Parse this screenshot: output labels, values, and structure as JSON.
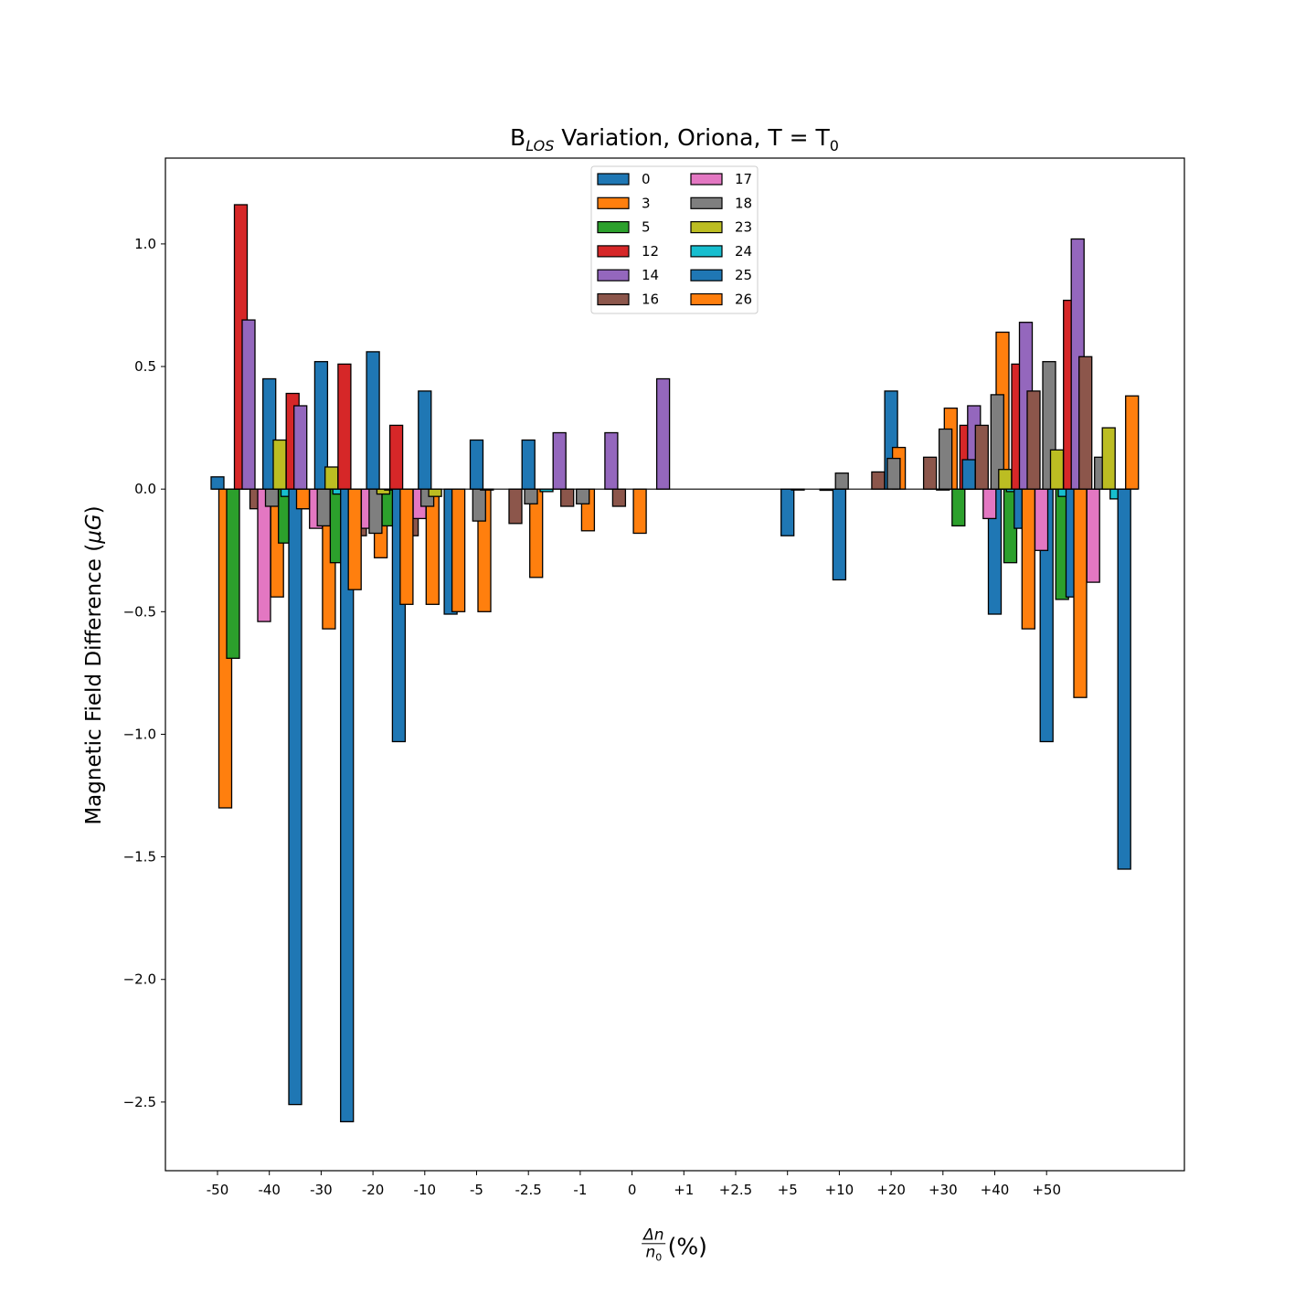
{
  "chart_data": {
    "type": "bar",
    "title": {
      "prefix": "B",
      "sub": "LOS",
      "middle": " Variation, Oriona, T = T",
      "sub2": "0"
    },
    "ylabel": {
      "text": "Magnetic Field Difference (",
      "unit": "μG",
      "close": ")"
    },
    "xlabel": {
      "num": "Δn",
      "den_base": "n",
      "den_sub": "0",
      "tail": "(%)"
    },
    "xticks": [
      "-50",
      "-40",
      "-30",
      "-20",
      "-10",
      "-5",
      "-2.5",
      "-1",
      "0",
      "+1",
      "+2.5",
      "+5",
      "+10",
      "+20",
      "+30",
      "+40",
      "+50"
    ],
    "yticks": [
      {
        "value": 1.0,
        "label": "1.0"
      },
      {
        "value": 0.5,
        "label": "0.5"
      },
      {
        "value": 0.0,
        "label": "0.0"
      },
      {
        "value": -0.5,
        "label": "−0.5"
      },
      {
        "value": -1.0,
        "label": "−1.0"
      },
      {
        "value": -1.5,
        "label": "−1.5"
      },
      {
        "value": -2.0,
        "label": "−2.0"
      },
      {
        "value": -2.5,
        "label": "−2.5"
      }
    ],
    "ylim": [
      -2.78,
      1.35
    ],
    "grid": false,
    "legend_position": "top-center",
    "legend_columns": 2,
    "series": [
      {
        "name": "0",
        "color": "#1f77b4",
        "values": [
          0.05,
          0.45,
          0.52,
          0.56,
          0.4,
          0.2,
          0.2,
          null,
          null,
          null,
          null,
          -0.19,
          -0.37,
          0.4,
          0.0,
          -0.51,
          -1.03
        ]
      },
      {
        "name": "3",
        "color": "#ff7f0e",
        "values": [
          -1.3,
          -0.44,
          -0.57,
          -0.28,
          -0.47,
          -0.5,
          -0.36,
          -0.17,
          -0.18,
          null,
          null,
          null,
          null,
          0.17,
          0.33,
          0.64,
          0.13
        ]
      },
      {
        "name": "5",
        "color": "#2ca02c",
        "values": [
          -0.69,
          -0.22,
          -0.3,
          -0.15,
          null,
          null,
          null,
          null,
          null,
          null,
          null,
          null,
          null,
          null,
          -0.15,
          -0.3,
          -0.45
        ]
      },
      {
        "name": "12",
        "color": "#d62728",
        "values": [
          1.16,
          0.39,
          0.51,
          0.26,
          null,
          null,
          null,
          null,
          null,
          null,
          null,
          null,
          null,
          null,
          0.26,
          0.51,
          0.77
        ]
      },
      {
        "name": "14",
        "color": "#9467bd",
        "values": [
          0.69,
          0.34,
          null,
          null,
          null,
          null,
          0.23,
          0.23,
          0.45,
          null,
          null,
          null,
          null,
          null,
          0.34,
          0.68,
          1.02
        ]
      },
      {
        "name": "16",
        "color": "#8c564b",
        "values": [
          -0.08,
          -0.08,
          -0.19,
          -0.19,
          null,
          -0.14,
          -0.07,
          -0.07,
          null,
          null,
          null,
          -0.005,
          0.07,
          0.13,
          0.26,
          0.4,
          0.54
        ]
      },
      {
        "name": "17",
        "color": "#e377c2",
        "values": [
          -0.54,
          -0.16,
          -0.16,
          -0.12,
          null,
          null,
          null,
          null,
          null,
          null,
          null,
          null,
          null,
          null,
          -0.12,
          -0.25,
          -0.38
        ]
      },
      {
        "name": "18",
        "color": "#7f7f7f",
        "values": [
          -0.07,
          -0.15,
          -0.18,
          -0.07,
          -0.13,
          -0.06,
          -0.06,
          null,
          null,
          null,
          null,
          0.065,
          0.125,
          0.245,
          0.385,
          0.52,
          0.13
        ]
      },
      {
        "name": "23",
        "color": "#bcbd22",
        "values": [
          0.2,
          0.09,
          -0.02,
          -0.03,
          0.0,
          null,
          null,
          null,
          null,
          null,
          0.0,
          null,
          null,
          null,
          0.08,
          0.16,
          0.25
        ]
      },
      {
        "name": "24",
        "color": "#17becf",
        "values": [
          -0.03,
          -0.02,
          0.0,
          null,
          null,
          -0.01,
          null,
          null,
          null,
          null,
          null,
          null,
          null,
          null,
          -0.01,
          -0.03,
          -0.04
        ]
      },
      {
        "name": "25",
        "color": "#1f77b4",
        "values": [
          -2.51,
          -2.58,
          -1.03,
          -0.51,
          null,
          null,
          null,
          null,
          null,
          null,
          null,
          null,
          null,
          0.12,
          -0.16,
          -0.44,
          -1.55
        ]
      },
      {
        "name": "26",
        "color": "#ff7f0e",
        "values": [
          -0.08,
          -0.41,
          -0.47,
          -0.5,
          null,
          null,
          null,
          null,
          null,
          null,
          null,
          null,
          null,
          null,
          -0.57,
          -0.85,
          0.38
        ]
      }
    ]
  }
}
